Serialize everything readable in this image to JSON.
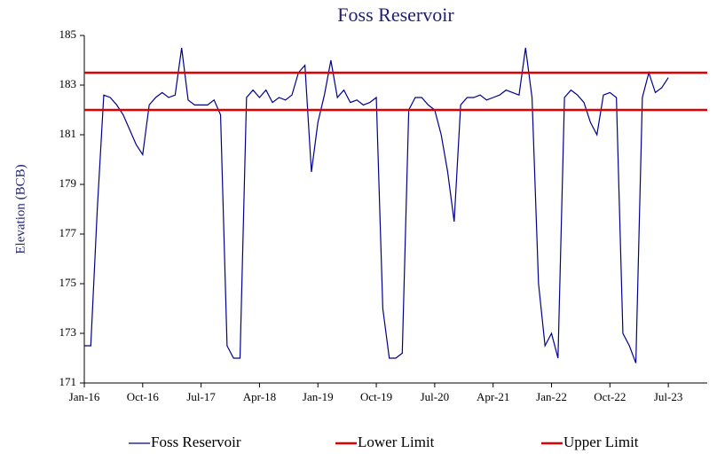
{
  "chart_data": {
    "type": "line",
    "title": "Foss Reservoir",
    "y_label": "Elevation (BCB)",
    "x": [
      "Jan-16",
      "Feb-16",
      "Mar-16",
      "Apr-16",
      "May-16",
      "Jun-16",
      "Jul-16",
      "Aug-16",
      "Sep-16",
      "Oct-16",
      "Nov-16",
      "Dec-16",
      "Jan-17",
      "Feb-17",
      "Mar-17",
      "Apr-17",
      "May-17",
      "Jun-17",
      "Jul-17",
      "Aug-17",
      "Sep-17",
      "Oct-17",
      "Nov-17",
      "Dec-17",
      "Jan-18",
      "Feb-18",
      "Mar-18",
      "Apr-18",
      "May-18",
      "Jun-18",
      "Jul-18",
      "Aug-18",
      "Sep-18",
      "Oct-18",
      "Nov-18",
      "Dec-18",
      "Jan-19",
      "Feb-19",
      "Mar-19",
      "Apr-19",
      "May-19",
      "Jun-19",
      "Jul-19",
      "Aug-19",
      "Sep-19",
      "Oct-19",
      "Nov-19",
      "Dec-19",
      "Jan-20",
      "Feb-20",
      "Mar-20",
      "Apr-20",
      "May-20",
      "Jun-20",
      "Jul-20",
      "Aug-20",
      "Sep-20",
      "Oct-20",
      "Nov-20",
      "Dec-20",
      "Jan-21",
      "Feb-21",
      "Mar-21",
      "Apr-21",
      "May-21",
      "Jun-21",
      "Jul-21",
      "Aug-21",
      "Sep-21",
      "Oct-21",
      "Nov-21",
      "Dec-21",
      "Jan-22",
      "Feb-22",
      "Mar-22",
      "Apr-22",
      "May-22",
      "Jun-22",
      "Jul-22",
      "Aug-22",
      "Sep-22",
      "Oct-22",
      "Nov-22",
      "Dec-22",
      "Jan-23",
      "Feb-23",
      "Mar-23",
      "Apr-23",
      "May-23",
      "Jun-23",
      "Jul-23"
    ],
    "series": [
      {
        "name": "Foss Reservoir",
        "color": "#00008b",
        "values": [
          172.5,
          172.5,
          178,
          182.6,
          182.5,
          182.2,
          181.8,
          181.2,
          180.6,
          180.2,
          182.2,
          182.5,
          182.7,
          182.5,
          182.6,
          184.5,
          182.4,
          182.2,
          182.2,
          182.2,
          182.4,
          181.8,
          172.5,
          172,
          172,
          182.5,
          182.8,
          182.5,
          182.8,
          182.3,
          182.5,
          182.4,
          182.6,
          183.5,
          183.8,
          179.5,
          181.5,
          182.6,
          184,
          182.5,
          182.8,
          182.3,
          182.4,
          182.2,
          182.3,
          182.5,
          174,
          172,
          172,
          172.2,
          182,
          182.5,
          182.5,
          182.2,
          182,
          181,
          179.5,
          177.5,
          182.2,
          182.5,
          182.5,
          182.6,
          182.4,
          182.5,
          182.6,
          182.8,
          182.7,
          182.6,
          184.5,
          182.5,
          175,
          172.5,
          173,
          172,
          182.5,
          182.8,
          182.6,
          182.3,
          181.5,
          181,
          182.6,
          182.7,
          182.5,
          173,
          172.5,
          171.8,
          182.5,
          183.5,
          182.7,
          182.9,
          183.3
        ]
      }
    ],
    "reference_lines": [
      {
        "name": "Lower Limit",
        "color": "#e00000",
        "value": 182
      },
      {
        "name": "Upper Limit",
        "color": "#e00000",
        "value": 183.5
      }
    ],
    "xticks": [
      "Jan-16",
      "Oct-16",
      "Jul-17",
      "Apr-18",
      "Jan-19",
      "Oct-19",
      "Jul-20",
      "Apr-21",
      "Jan-22",
      "Oct-22",
      "Jul-23"
    ],
    "ylim": [
      171,
      185
    ],
    "yticks": [
      171,
      173,
      175,
      177,
      179,
      181,
      183,
      185
    ],
    "grid": false
  }
}
